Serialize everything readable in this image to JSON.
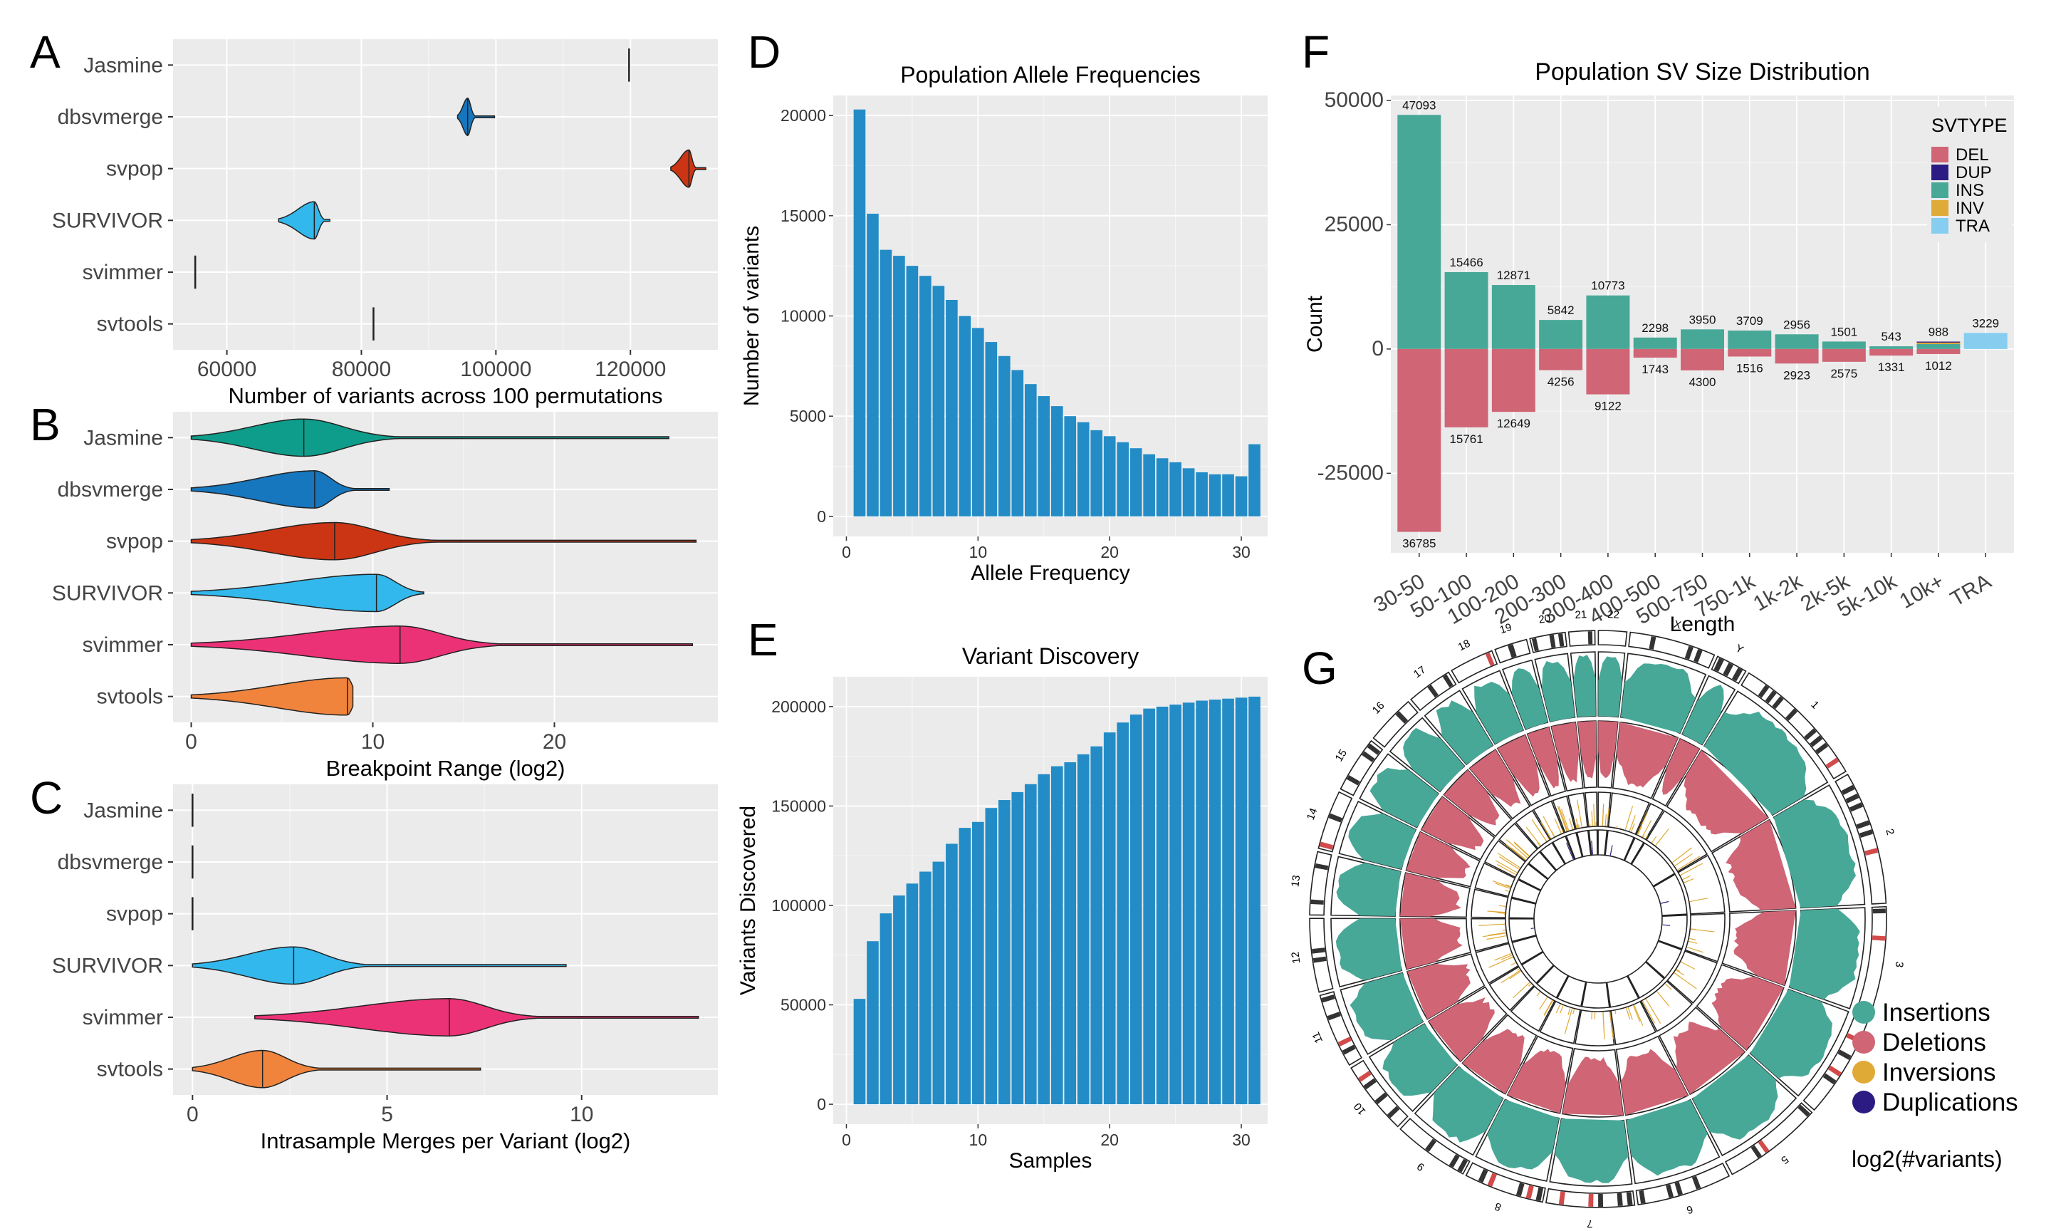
{
  "palette": {
    "jasmine": "#0e9d8a",
    "dbsvmerge": "#1676be",
    "svpop": "#cc3513",
    "survivor": "#32b8ec",
    "svimmer": "#ec3277",
    "svtools": "#f0843c",
    "bar_blue": "#238cc6",
    "del": "#cf6575",
    "dup": "#2c1b82",
    "ins": "#48a898",
    "inv": "#e0aa36",
    "tra": "#86cdef",
    "panel_bg": "#ebebeb",
    "grid": "#ffffff"
  },
  "panels": {
    "A": {
      "letter": "A"
    },
    "B": {
      "letter": "B"
    },
    "C": {
      "letter": "C"
    },
    "D": {
      "letter": "D"
    },
    "E": {
      "letter": "E"
    },
    "F": {
      "letter": "F"
    },
    "G": {
      "letter": "G"
    }
  },
  "chart_data": [
    {
      "id": "A",
      "type": "violin",
      "orientation": "horizontal",
      "xlabel": "Number of variants across 100 permutations",
      "xlim": [
        52000,
        133000
      ],
      "xticks": [
        60000,
        80000,
        100000,
        120000
      ],
      "xtick_labels": [
        "60000",
        "80000",
        "100000",
        "120000"
      ],
      "categories": [
        "Jasmine",
        "dbsvmerge",
        "svpop",
        "SURVIVOR",
        "svimmer",
        "svtools"
      ],
      "series": [
        {
          "name": "Jasmine",
          "color": "jasmine",
          "median": 119800,
          "min": 119800,
          "max": 119800,
          "point_mass": true
        },
        {
          "name": "dbsvmerge",
          "color": "dbsvmerge",
          "median": 95800,
          "min": 94300,
          "max": 99800
        },
        {
          "name": "svpop",
          "color": "svpop",
          "median": 128700,
          "min": 126000,
          "max": 131200
        },
        {
          "name": "SURVIVOR",
          "color": "survivor",
          "median": 73000,
          "min": 67700,
          "max": 75300
        },
        {
          "name": "svimmer",
          "color": "svimmer",
          "median": 55300,
          "min": 55300,
          "max": 55300,
          "point_mass": true
        },
        {
          "name": "svtools",
          "color": "svtools",
          "median": 81800,
          "min": 81800,
          "max": 81800,
          "point_mass": true
        }
      ]
    },
    {
      "id": "B",
      "type": "violin",
      "orientation": "horizontal",
      "xlabel": "Breakpoint Range (log2)",
      "xlim": [
        -1,
        29
      ],
      "xticks": [
        0,
        10,
        20
      ],
      "xtick_labels": [
        "0",
        "10",
        "20"
      ],
      "categories": [
        "Jasmine",
        "dbsvmerge",
        "svpop",
        "SURVIVOR",
        "svimmer",
        "svtools"
      ],
      "series": [
        {
          "name": "Jasmine",
          "color": "jasmine",
          "median": 6.2,
          "min": 0,
          "max": 26.3
        },
        {
          "name": "dbsvmerge",
          "color": "dbsvmerge",
          "median": 6.8,
          "min": 0,
          "max": 10.9
        },
        {
          "name": "svpop",
          "color": "svpop",
          "median": 7.9,
          "min": 0,
          "max": 27.8
        },
        {
          "name": "SURVIVOR",
          "color": "survivor",
          "median": 10.2,
          "min": 0,
          "max": 12.8
        },
        {
          "name": "svimmer",
          "color": "svimmer",
          "median": 11.5,
          "min": 0,
          "max": 27.6
        },
        {
          "name": "svtools",
          "color": "svtools",
          "median": 8.6,
          "min": 0,
          "max": 8.9
        }
      ]
    },
    {
      "id": "C",
      "type": "violin",
      "orientation": "horizontal",
      "xlabel": "Intrasample Merges per Variant (log2)",
      "xlim": [
        -0.5,
        13.5
      ],
      "xticks": [
        0,
        5,
        10
      ],
      "xtick_labels": [
        "0",
        "5",
        "10"
      ],
      "categories": [
        "Jasmine",
        "dbsvmerge",
        "svpop",
        "SURVIVOR",
        "svimmer",
        "svtools"
      ],
      "series": [
        {
          "name": "Jasmine",
          "color": "jasmine",
          "median": 0,
          "min": 0,
          "max": 0,
          "point_mass": true
        },
        {
          "name": "dbsvmerge",
          "color": "dbsvmerge",
          "median": 0,
          "min": 0,
          "max": 0,
          "point_mass": true
        },
        {
          "name": "svpop",
          "color": "svpop",
          "median": 0,
          "min": 0,
          "max": 0,
          "point_mass": true
        },
        {
          "name": "SURVIVOR",
          "color": "survivor",
          "median": 2.6,
          "min": 0,
          "max": 9.6
        },
        {
          "name": "svimmer",
          "color": "svimmer",
          "median": 6.6,
          "min": 1.6,
          "max": 13.0
        },
        {
          "name": "svtools",
          "color": "svtools",
          "median": 1.8,
          "min": 0,
          "max": 7.4
        }
      ]
    },
    {
      "id": "D",
      "type": "bar",
      "title": "Population Allele Frequencies",
      "xlabel": "Allele Frequency",
      "ylabel": "Number of variants",
      "xlim": [
        -1,
        32
      ],
      "ylim": [
        -1000,
        21000
      ],
      "xticks": [
        0,
        10,
        20,
        30
      ],
      "yticks": [
        0,
        5000,
        10000,
        15000,
        20000
      ],
      "x": [
        1,
        2,
        3,
        4,
        5,
        6,
        7,
        8,
        9,
        10,
        11,
        12,
        13,
        14,
        15,
        16,
        17,
        18,
        19,
        20,
        21,
        22,
        23,
        24,
        25,
        26,
        27,
        28,
        29,
        30,
        31
      ],
      "values": [
        20300,
        15100,
        13300,
        13000,
        12500,
        12000,
        11500,
        10800,
        10000,
        9400,
        8700,
        8000,
        7300,
        6600,
        6000,
        5500,
        5000,
        4700,
        4300,
        4000,
        3700,
        3400,
        3100,
        2900,
        2700,
        2400,
        2200,
        2100,
        2100,
        2000,
        3600
      ]
    },
    {
      "id": "E",
      "type": "bar",
      "title": "Variant Discovery",
      "xlabel": "Samples",
      "ylabel": "Variants Discovered",
      "xlim": [
        -1,
        32
      ],
      "ylim": [
        -10000,
        215000
      ],
      "xticks": [
        0,
        10,
        20,
        30
      ],
      "yticks": [
        0,
        50000,
        100000,
        150000,
        200000
      ],
      "x": [
        1,
        2,
        3,
        4,
        5,
        6,
        7,
        8,
        9,
        10,
        11,
        12,
        13,
        14,
        15,
        16,
        17,
        18,
        19,
        20,
        21,
        22,
        23,
        24,
        25,
        26,
        27,
        28,
        29,
        30,
        31
      ],
      "values": [
        53000,
        82000,
        96000,
        105000,
        111000,
        117000,
        122000,
        131000,
        139000,
        142000,
        149000,
        153000,
        157000,
        161000,
        166000,
        170000,
        172000,
        176000,
        180000,
        187000,
        192000,
        196000,
        199000,
        200000,
        201000,
        202000,
        203000,
        203500,
        204000,
        204500,
        205000
      ]
    },
    {
      "id": "F",
      "type": "bar",
      "stacked": true,
      "title": "Population SV Size Distribution",
      "xlabel": "Length",
      "ylabel": "Count",
      "ylim": [
        -41000,
        51000
      ],
      "yticks": [
        -25000,
        0,
        25000,
        50000
      ],
      "ytick_labels": [
        "-25000",
        "0",
        "25000",
        "50000"
      ],
      "categories": [
        "30-50",
        "50-100",
        "100-200",
        "200-300",
        "300-400",
        "400-500",
        "500-750",
        "750-1k",
        "1k-2k",
        "2k-5k",
        "5k-10k",
        "10k+",
        "TRA"
      ],
      "series": [
        {
          "name": "INS",
          "color": "ins",
          "values": [
            47093,
            15466,
            12871,
            5842,
            10773,
            2298,
            3950,
            3709,
            2956,
            1501,
            543,
            988,
            0
          ]
        },
        {
          "name": "DEL",
          "color": "del",
          "values": [
            -36785,
            -15761,
            -12649,
            -4256,
            -9122,
            -1743,
            -4300,
            -1516,
            -2923,
            -2575,
            -1331,
            -1012,
            0
          ]
        },
        {
          "name": "INV",
          "color": "inv",
          "values": [
            0,
            0,
            0,
            0,
            0,
            0,
            0,
            0,
            0,
            0,
            0,
            300,
            0
          ]
        },
        {
          "name": "DUP",
          "color": "dup",
          "values": [
            0,
            0,
            0,
            0,
            0,
            0,
            0,
            0,
            0,
            0,
            0,
            200,
            0
          ]
        },
        {
          "name": "TRA",
          "color": "tra",
          "values": [
            0,
            0,
            0,
            0,
            0,
            0,
            0,
            0,
            0,
            0,
            0,
            0,
            3229
          ]
        }
      ],
      "pos_labels": [
        "47093",
        "15466",
        "12871",
        "5842",
        "10773",
        "2298",
        "3950",
        "3709",
        "2956",
        "1501",
        "543",
        "988",
        "3229"
      ],
      "neg_labels": [
        "36785",
        "15761",
        "12649",
        "4256",
        "9122",
        "1743",
        "4300",
        "1516",
        "2923",
        "2575",
        "1331",
        "1012",
        ""
      ],
      "legend": {
        "title": "SVTYPE",
        "position": "top-right",
        "entries": [
          "DEL",
          "DUP",
          "INS",
          "INV",
          "TRA"
        ]
      }
    },
    {
      "id": "G",
      "type": "circos",
      "chromosomes": [
        "1",
        "2",
        "3",
        "4",
        "5",
        "6",
        "7",
        "8",
        "9",
        "10",
        "11",
        "12",
        "13",
        "14",
        "15",
        "16",
        "17",
        "18",
        "19",
        "20",
        "21",
        "22",
        "X",
        "Y"
      ],
      "tracks": [
        "Insertions",
        "Deletions",
        "Inversions",
        "Duplications"
      ],
      "legend": [
        {
          "label": "Insertions",
          "color": "ins"
        },
        {
          "label": "Deletions",
          "color": "del"
        },
        {
          "label": "Inversions",
          "color": "inv"
        },
        {
          "label": "Duplications",
          "color": "dup"
        }
      ],
      "footnote": "log2(#variants)"
    }
  ]
}
